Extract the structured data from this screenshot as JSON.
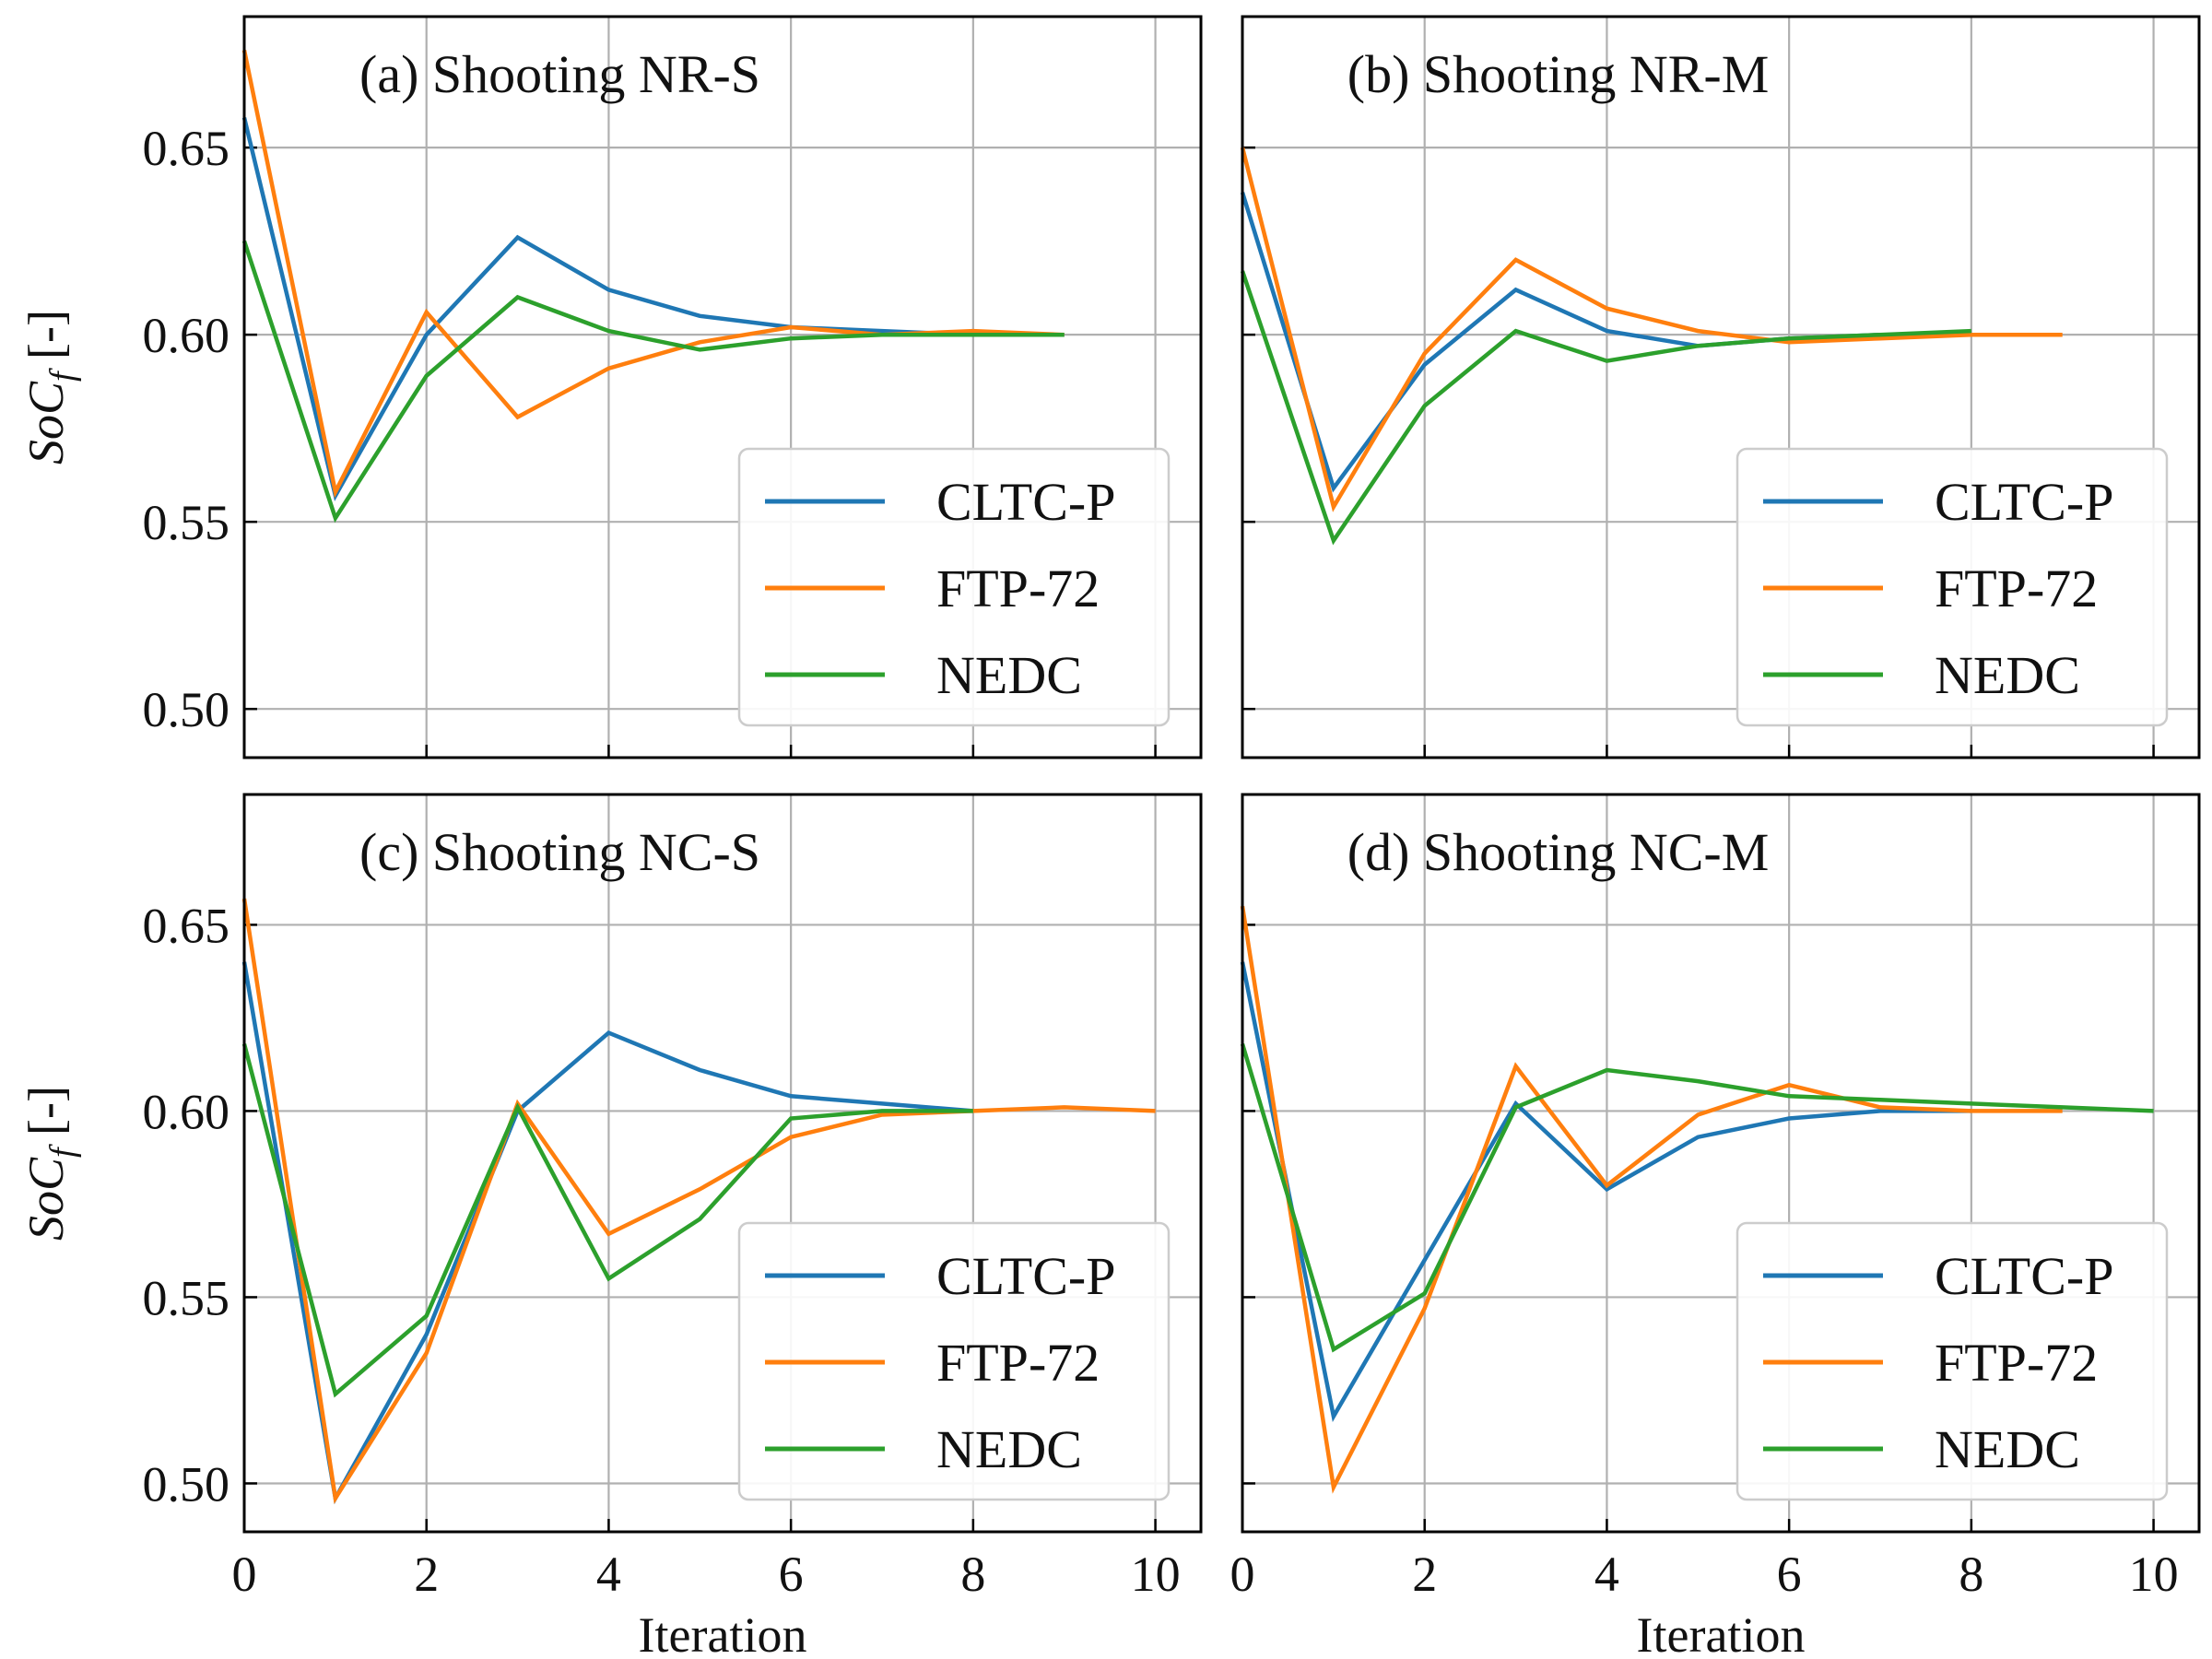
{
  "colors": {
    "CLTC-P": "#1f77b4",
    "FTP-72": "#ff7f0e",
    "NEDC": "#2ca02c"
  },
  "labels": {
    "xlabel": "Iteration",
    "ylabel_main": "SoC",
    "ylabel_sub": "f",
    "ylabel_unit": "[-]"
  },
  "chart_data": [
    {
      "type": "line",
      "title": "(a) Shooting NR-S",
      "xlabel": "",
      "ylabel": "SoC_f [-]",
      "xlim": [
        0,
        10.5
      ],
      "ylim": [
        0.487,
        0.685
      ],
      "xticks": [
        0,
        2,
        4,
        6,
        8,
        10
      ],
      "yticks": [
        0.5,
        0.55,
        0.6,
        0.65
      ],
      "grid": true,
      "legend_position": "lower-right",
      "series": [
        {
          "name": "CLTC-P",
          "x": [
            0,
            1,
            2,
            3,
            4,
            5,
            6,
            7,
            8,
            9
          ],
          "y": [
            0.658,
            0.557,
            0.6,
            0.626,
            0.612,
            0.605,
            0.602,
            0.601,
            0.6,
            0.6
          ]
        },
        {
          "name": "FTP-72",
          "x": [
            0,
            1,
            2,
            3,
            4,
            5,
            6,
            7,
            8,
            9
          ],
          "y": [
            0.676,
            0.558,
            0.606,
            0.578,
            0.591,
            0.598,
            0.602,
            0.6,
            0.601,
            0.6
          ]
        },
        {
          "name": "NEDC",
          "x": [
            0,
            1,
            2,
            3,
            4,
            5,
            6,
            7,
            8,
            9
          ],
          "y": [
            0.625,
            0.551,
            0.589,
            0.61,
            0.601,
            0.596,
            0.599,
            0.6,
            0.6,
            0.6
          ]
        }
      ]
    },
    {
      "type": "line",
      "title": "(b) Shooting NR-M",
      "xlabel": "",
      "ylabel": "",
      "xlim": [
        0,
        10.5
      ],
      "ylim": [
        0.487,
        0.685
      ],
      "xticks": [
        0,
        2,
        4,
        6,
        8,
        10
      ],
      "yticks": [
        0.5,
        0.55,
        0.6,
        0.65
      ],
      "grid": true,
      "legend_position": "lower-right",
      "series": [
        {
          "name": "CLTC-P",
          "x": [
            0,
            1,
            2,
            3,
            4,
            5,
            6,
            7,
            8
          ],
          "y": [
            0.638,
            0.559,
            0.592,
            0.612,
            0.601,
            0.597,
            0.599,
            0.6,
            0.6
          ]
        },
        {
          "name": "FTP-72",
          "x": [
            0,
            1,
            2,
            3,
            4,
            5,
            6,
            7,
            8,
            9
          ],
          "y": [
            0.65,
            0.554,
            0.595,
            0.62,
            0.607,
            0.601,
            0.598,
            0.599,
            0.6,
            0.6
          ]
        },
        {
          "name": "NEDC",
          "x": [
            0,
            1,
            2,
            3,
            4,
            5,
            6,
            7,
            8
          ],
          "y": [
            0.617,
            0.545,
            0.581,
            0.601,
            0.593,
            0.597,
            0.599,
            0.6,
            0.601
          ]
        }
      ]
    },
    {
      "type": "line",
      "title": "(c) Shooting NC-S",
      "xlabel": "Iteration",
      "ylabel": "SoC_f [-]",
      "xlim": [
        0,
        10.5
      ],
      "ylim": [
        0.487,
        0.685
      ],
      "xticks": [
        0,
        2,
        4,
        6,
        8,
        10
      ],
      "yticks": [
        0.5,
        0.55,
        0.6,
        0.65
      ],
      "grid": true,
      "legend_position": "lower-right",
      "series": [
        {
          "name": "CLTC-P",
          "x": [
            0,
            1,
            2,
            3,
            4,
            5,
            6,
            7,
            8
          ],
          "y": [
            0.64,
            0.496,
            0.54,
            0.6,
            0.621,
            0.611,
            0.604,
            0.602,
            0.6
          ]
        },
        {
          "name": "FTP-72",
          "x": [
            0,
            1,
            2,
            3,
            4,
            5,
            6,
            7,
            8,
            9,
            10
          ],
          "y": [
            0.657,
            0.496,
            0.535,
            0.602,
            0.567,
            0.579,
            0.593,
            0.599,
            0.6,
            0.601,
            0.6
          ]
        },
        {
          "name": "NEDC",
          "x": [
            0,
            1,
            2,
            3,
            4,
            5,
            6,
            7,
            8
          ],
          "y": [
            0.618,
            0.524,
            0.545,
            0.601,
            0.555,
            0.571,
            0.598,
            0.6,
            0.6
          ]
        }
      ]
    },
    {
      "type": "line",
      "title": "(d) Shooting NC-M",
      "xlabel": "Iteration",
      "ylabel": "",
      "xlim": [
        0,
        10.5
      ],
      "ylim": [
        0.487,
        0.685
      ],
      "xticks": [
        0,
        2,
        4,
        6,
        8,
        10
      ],
      "yticks": [
        0.5,
        0.55,
        0.6,
        0.65
      ],
      "grid": true,
      "legend_position": "lower-right",
      "series": [
        {
          "name": "CLTC-P",
          "x": [
            0,
            1,
            2,
            3,
            4,
            5,
            6,
            7,
            8
          ],
          "y": [
            0.64,
            0.518,
            0.56,
            0.602,
            0.579,
            0.593,
            0.598,
            0.6,
            0.6
          ]
        },
        {
          "name": "FTP-72",
          "x": [
            0,
            1,
            2,
            3,
            4,
            5,
            6,
            7,
            8,
            9
          ],
          "y": [
            0.655,
            0.499,
            0.547,
            0.612,
            0.58,
            0.599,
            0.607,
            0.601,
            0.6,
            0.6
          ]
        },
        {
          "name": "NEDC",
          "x": [
            0,
            1,
            2,
            3,
            4,
            5,
            6,
            7,
            8,
            9,
            10
          ],
          "y": [
            0.618,
            0.536,
            0.551,
            0.601,
            0.611,
            0.608,
            0.604,
            0.603,
            0.602,
            0.601,
            0.6
          ]
        }
      ]
    }
  ]
}
